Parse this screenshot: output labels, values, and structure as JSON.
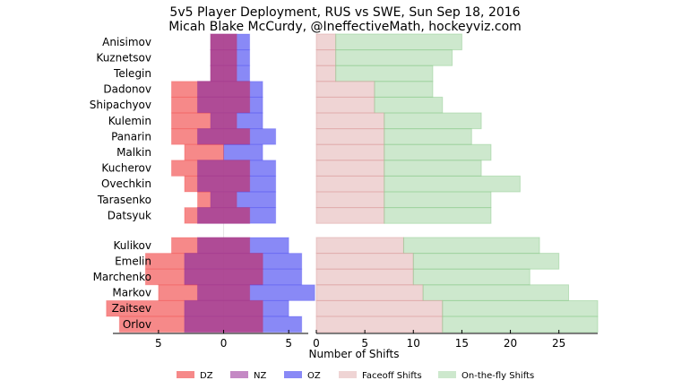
{
  "chart_data": {
    "type": "bar",
    "title": "5v5 Player Deployment, RUS vs SWE, Sun Sep 18, 2016",
    "subtitle": "Micah Blake McCurdy, @IneffectiveMath, hockeyviz.com",
    "xlabel": "Number of Shifts",
    "left_panel": {
      "xlim": [
        -8.5,
        6.5
      ],
      "ticks": [
        -5,
        0,
        5
      ],
      "tick_labels": [
        "5",
        "0",
        "5"
      ]
    },
    "right_panel": {
      "xlim": [
        0,
        29
      ],
      "ticks": [
        0,
        5,
        10,
        15,
        20,
        25
      ],
      "tick_labels": [
        "0",
        "5",
        "10",
        "15",
        "20",
        "25"
      ]
    },
    "colors": {
      "dz": "#f04040",
      "nz": "#a040a0",
      "oz": "#4040f0",
      "faceoff": "#dca0a0",
      "otf": "#90cc90"
    },
    "groups": [
      {
        "name": "forwards",
        "players": [
          {
            "name": "Anisimov",
            "dz": 0,
            "nz": 1,
            "oz": 1,
            "faceoff": 2,
            "otf": 13
          },
          {
            "name": "Kuznetsov",
            "dz": 0,
            "nz": 1,
            "oz": 1,
            "faceoff": 2,
            "otf": 12
          },
          {
            "name": "Telegin",
            "dz": 0,
            "nz": 1,
            "oz": 1,
            "faceoff": 2,
            "otf": 10
          },
          {
            "name": "Dadonov",
            "dz": 2,
            "nz": 2,
            "oz": 1,
            "faceoff": 6,
            "otf": 6
          },
          {
            "name": "Shipachyov",
            "dz": 2,
            "nz": 2,
            "oz": 1,
            "faceoff": 6,
            "otf": 7
          },
          {
            "name": "Kulemin",
            "dz": 3,
            "nz": 1,
            "oz": 2,
            "faceoff": 7,
            "otf": 10
          },
          {
            "name": "Panarin",
            "dz": 2,
            "nz": 2,
            "oz": 2,
            "faceoff": 7,
            "otf": 9
          },
          {
            "name": "Malkin",
            "dz": 3,
            "nz": 0,
            "oz": 3,
            "faceoff": 7,
            "otf": 11
          },
          {
            "name": "Kucherov",
            "dz": 2,
            "nz": 2,
            "oz": 2,
            "faceoff": 7,
            "otf": 10
          },
          {
            "name": "Ovechkin",
            "dz": 1,
            "nz": 2,
            "oz": 2,
            "faceoff": 7,
            "otf": 14
          },
          {
            "name": "Tarasenko",
            "dz": 1,
            "nz": 1,
            "oz": 3,
            "faceoff": 7,
            "otf": 11
          },
          {
            "name": "Datsyuk",
            "dz": 1,
            "nz": 2,
            "oz": 2,
            "faceoff": 7,
            "otf": 11
          }
        ]
      },
      {
        "name": "defence",
        "players": [
          {
            "name": "Kulikov",
            "dz": 2,
            "nz": 2,
            "oz": 3,
            "faceoff": 9,
            "otf": 14
          },
          {
            "name": "Emelin",
            "dz": 3,
            "nz": 3,
            "oz": 3,
            "faceoff": 10,
            "otf": 15
          },
          {
            "name": "Marchenko",
            "dz": 3,
            "nz": 3,
            "oz": 3,
            "faceoff": 10,
            "otf": 12
          },
          {
            "name": "Markov",
            "dz": 3,
            "nz": 2,
            "oz": 5,
            "faceoff": 11,
            "otf": 15
          },
          {
            "name": "Zaitsev",
            "dz": 6,
            "nz": 3,
            "oz": 2,
            "faceoff": 13,
            "otf": 16
          },
          {
            "name": "Orlov",
            "dz": 5,
            "nz": 3,
            "oz": 3,
            "faceoff": 13,
            "otf": 16
          }
        ]
      }
    ],
    "legend": {
      "placement": "bottom",
      "entries": [
        {
          "key": "dz",
          "label": "DZ"
        },
        {
          "key": "nz",
          "label": "NZ"
        },
        {
          "key": "oz",
          "label": "OZ"
        },
        {
          "key": "faceoff",
          "label": "Faceoff Shifts"
        },
        {
          "key": "otf",
          "label": "On-the-fly Shifts"
        }
      ]
    }
  }
}
